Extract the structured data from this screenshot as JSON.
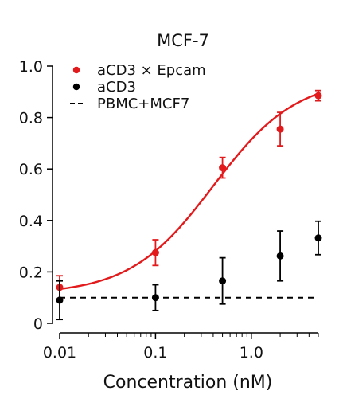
{
  "chart_data": {
    "type": "scatter",
    "title": "MCF-7",
    "xlabel": "Concentration (nM)",
    "ylabel": "",
    "x_scale": "log",
    "xlim": [
      0.01,
      5
    ],
    "ylim": [
      0,
      1.0
    ],
    "xticks": [
      0.01,
      0.1,
      1.0
    ],
    "xtick_labels": [
      "0.01",
      "0.1",
      "1.0"
    ],
    "yticks": [
      0,
      0.2,
      0.4,
      0.6,
      0.8,
      1.0
    ],
    "ytick_labels": [
      "0",
      "0.2",
      "0.4",
      "0.6",
      "0.8",
      "1.0"
    ],
    "grid": false,
    "legend_position": "top-left",
    "series": [
      {
        "name": "aCD3 × Epcam",
        "color": "#e31a1c",
        "marker": "circle",
        "x": [
          0.01,
          0.1,
          0.5,
          2,
          5
        ],
        "y": [
          0.14,
          0.275,
          0.605,
          0.755,
          0.885
        ],
        "err": [
          0.045,
          0.05,
          0.04,
          0.065,
          0.02
        ]
      },
      {
        "name": "aCD3",
        "color": "#000000",
        "marker": "circle",
        "x": [
          0.01,
          0.1,
          0.5,
          2,
          5
        ],
        "y": [
          0.09,
          0.1,
          0.165,
          0.262,
          0.332
        ],
        "err": [
          0.075,
          0.05,
          0.09,
          0.097,
          0.065
        ]
      },
      {
        "name": "PBMC+MCF7",
        "color": "#000000",
        "style": "dashed",
        "x": [
          0.01,
          5
        ],
        "y": [
          0.1,
          0.1
        ]
      }
    ],
    "fit": {
      "series": "aCD3 × Epcam",
      "type": "sigmoid",
      "color": "#e31a1c",
      "bottom": 0.113,
      "top": 0.955,
      "ec50": 0.4,
      "hill": 1.0
    }
  }
}
